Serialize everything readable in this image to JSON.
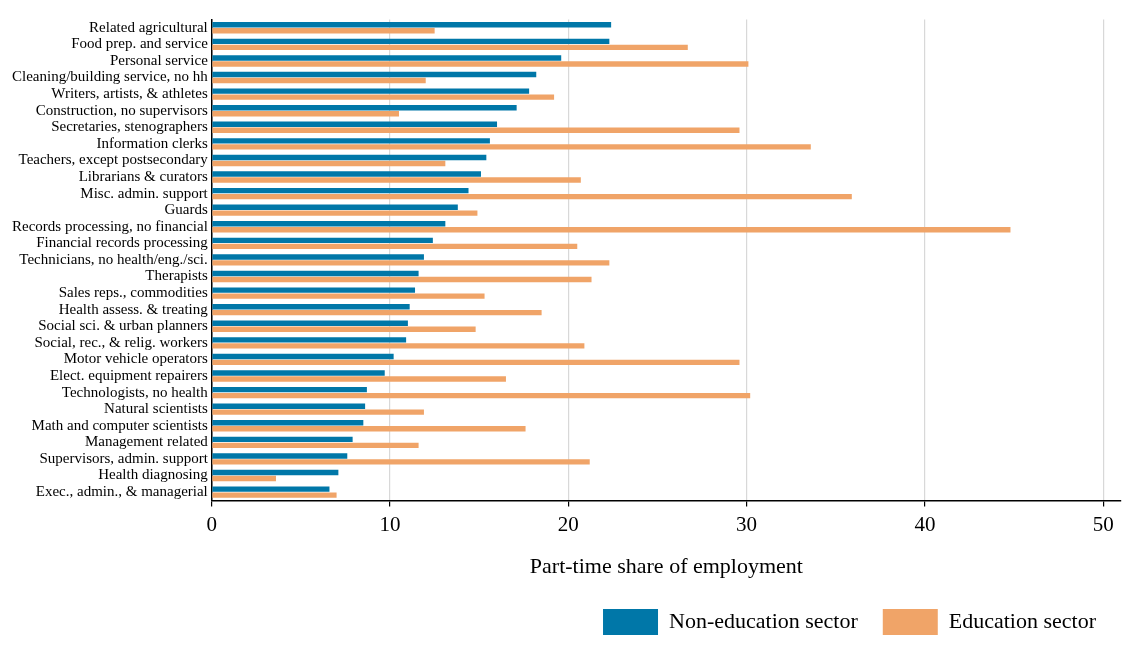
{
  "chart_data": {
    "type": "bar",
    "orientation": "horizontal",
    "xlabel": "Part-time share of employment",
    "categories": [
      "Related agricultural",
      "Food prep. and service",
      "Personal service",
      "Cleaning/building service, no hh",
      "Writers, artists, & athletes",
      "Construction, no supervisors",
      "Secretaries, stenographers",
      "Information clerks",
      "Teachers, except postsecondary",
      "Librarians & curators",
      "Misc. admin. support",
      "Guards",
      "Records processing, no financial",
      "Financial records processing",
      "Technicians, no health/eng./sci.",
      "Therapists",
      "Sales reps., commodities",
      "Health assess. & treating",
      "Social sci. & urban planners",
      "Social, rec., & relig. workers",
      "Motor vehicle operators",
      "Elect. equipment repairers",
      "Technologists, no health",
      "Natural scientists",
      "Math and computer scientists",
      "Management related",
      "Supervisors, admin. support",
      "Health diagnosing",
      "Exec., admin., & managerial"
    ],
    "series": [
      {
        "name": "Non-education sector",
        "color": "#0077a8",
        "values": [
          22.4,
          22.3,
          19.6,
          18.2,
          17.8,
          17.1,
          16.0,
          15.6,
          15.4,
          15.1,
          14.4,
          13.8,
          13.1,
          12.4,
          11.9,
          11.6,
          11.4,
          11.1,
          11.0,
          10.9,
          10.2,
          9.7,
          8.7,
          8.6,
          8.5,
          7.9,
          7.6,
          7.1,
          6.6
        ]
      },
      {
        "name": "Education sector",
        "color": "#f0a468",
        "values": [
          12.5,
          26.7,
          30.1,
          12.0,
          19.2,
          10.5,
          29.6,
          33.6,
          13.1,
          20.7,
          35.9,
          14.9,
          44.8,
          20.5,
          22.3,
          21.3,
          15.3,
          18.5,
          14.8,
          20.9,
          29.6,
          16.5,
          30.2,
          11.9,
          17.6,
          11.6,
          21.2,
          3.6,
          7.0
        ]
      }
    ],
    "xlim": [
      0,
      51
    ],
    "xticks": [
      0,
      10,
      20,
      30,
      40,
      50
    ],
    "grid": "x",
    "legend": "bottom"
  }
}
